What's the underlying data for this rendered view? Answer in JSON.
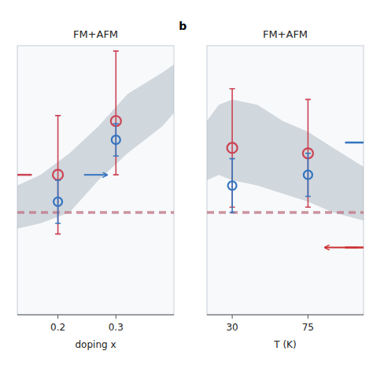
{
  "chart_data": [
    {
      "type": "scatter",
      "title": "FM+AFM",
      "x_label": "doping x",
      "xlim": [
        0.13,
        0.4
      ],
      "ylim": [
        0.0,
        1.0
      ],
      "xticks": [
        0.2,
        0.3
      ],
      "yticks": [],
      "tick_labels": "x",
      "series": [
        {
          "type": "scatter",
          "marker": "circle",
          "color": "#cc4455",
          "x": [
            0.2,
            0.3
          ],
          "values": [
            0.52,
            0.72
          ],
          "error_low": [
            0.22,
            0.2
          ],
          "error_high": [
            0.22,
            0.26
          ]
        },
        {
          "type": "scatter",
          "marker": "circle",
          "color": "#3575c0",
          "x": [
            0.2,
            0.3
          ],
          "values": [
            0.42,
            0.65
          ],
          "error_low": [
            0.08,
            0.06
          ],
          "error_high": [
            0.08,
            0.06
          ]
        }
      ],
      "areas": [
        {
          "type": "area",
          "color": "#aab5c0",
          "upper_x": [
            0.13,
            0.17,
            0.22,
            0.27,
            0.32,
            0.38,
            0.4
          ],
          "upper_y": [
            0.48,
            0.52,
            0.6,
            0.7,
            0.82,
            0.9,
            0.93
          ],
          "lower_x": [
            0.4,
            0.38,
            0.32,
            0.27,
            0.22,
            0.17,
            0.13
          ],
          "lower_y": [
            0.75,
            0.7,
            0.6,
            0.5,
            0.38,
            0.34,
            0.32
          ]
        }
      ],
      "lines": [
        {
          "type": "line",
          "line_style": "dashed",
          "color": "#c07888",
          "y": 0.38
        },
        {
          "type": "line",
          "line_style": "solid",
          "color": "#cc4455",
          "x": [
            0.13,
            0.155
          ],
          "values": [
            0.52,
            0.52
          ]
        }
      ],
      "arrows": [
        {
          "color": "#3575c0",
          "x": [
            0.245,
            0.285
          ],
          "y": 0.52
        }
      ]
    },
    {
      "type": "scatter",
      "title": "FM+AFM",
      "panel_label": "b",
      "x_label": "T (K)",
      "xlim": [
        15,
        108
      ],
      "ylim": [
        0.0,
        1.0
      ],
      "xticks": [
        30,
        75
      ],
      "yticks": [],
      "tick_labels": "x",
      "series": [
        {
          "type": "scatter",
          "marker": "circle",
          "color": "#cc4455",
          "x": [
            30,
            75
          ],
          "values": [
            0.62,
            0.6
          ],
          "error_low": [
            0.22,
            0.2
          ],
          "error_high": [
            0.22,
            0.2
          ]
        },
        {
          "type": "scatter",
          "marker": "circle",
          "color": "#3575c0",
          "x": [
            30,
            75
          ],
          "values": [
            0.48,
            0.52
          ],
          "error_low": [
            0.1,
            0.08
          ],
          "error_high": [
            0.1,
            0.08
          ]
        }
      ],
      "areas": [
        {
          "type": "area",
          "color": "#aab5c0",
          "upper_x": [
            15,
            22,
            30,
            45,
            60,
            75,
            90,
            108
          ],
          "upper_y": [
            0.72,
            0.78,
            0.8,
            0.78,
            0.72,
            0.68,
            0.62,
            0.55
          ],
          "lower_x": [
            108,
            90,
            75,
            60,
            45,
            30,
            22,
            15
          ],
          "lower_y": [
            0.35,
            0.38,
            0.42,
            0.45,
            0.48,
            0.5,
            0.52,
            0.5
          ]
        }
      ],
      "lines": [
        {
          "type": "line",
          "line_style": "dashed",
          "color": "#c07888",
          "y": 0.38
        },
        {
          "type": "line",
          "line_style": "solid",
          "color": "#3575c0",
          "x": [
            97,
            108
          ],
          "values": [
            0.64,
            0.64
          ]
        },
        {
          "type": "line",
          "line_style": "solid",
          "color": "#cc3030",
          "x": [
            97,
            108
          ],
          "values": [
            0.25,
            0.25
          ]
        }
      ],
      "arrows": [
        {
          "color": "#cc3030",
          "x": [
            105,
            85
          ],
          "y": 0.25
        }
      ]
    }
  ]
}
